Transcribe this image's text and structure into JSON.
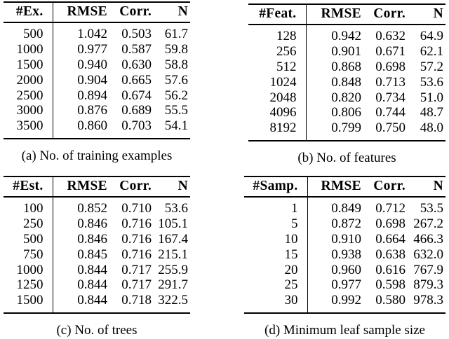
{
  "figure": {
    "background": "#ffffff",
    "text_color": "#000000",
    "rule_color": "#000000",
    "tables": [
      {
        "id": "a",
        "caption": "(a) No. of training examples",
        "headers": {
          "param": "#Ex.",
          "rmse": "RMSE",
          "corr": "Corr.",
          "n": "N"
        },
        "rows": [
          [
            "500",
            "1.042",
            "0.503",
            "61.7"
          ],
          [
            "1000",
            "0.977",
            "0.587",
            "59.8"
          ],
          [
            "1500",
            "0.940",
            "0.630",
            "58.8"
          ],
          [
            "2000",
            "0.904",
            "0.665",
            "57.6"
          ],
          [
            "2500",
            "0.894",
            "0.674",
            "56.2"
          ],
          [
            "3000",
            "0.876",
            "0.689",
            "55.5"
          ],
          [
            "3500",
            "0.860",
            "0.703",
            "54.1"
          ]
        ]
      },
      {
        "id": "b",
        "caption": "(b) No. of features",
        "headers": {
          "param": "#Feat.",
          "rmse": "RMSE",
          "corr": "Corr.",
          "n": "N"
        },
        "rows": [
          [
            "128",
            "0.942",
            "0.632",
            "64.9"
          ],
          [
            "256",
            "0.901",
            "0.671",
            "62.1"
          ],
          [
            "512",
            "0.868",
            "0.698",
            "57.2"
          ],
          [
            "1024",
            "0.848",
            "0.713",
            "53.6"
          ],
          [
            "2048",
            "0.820",
            "0.734",
            "51.0"
          ],
          [
            "4096",
            "0.806",
            "0.744",
            "48.7"
          ],
          [
            "8192",
            "0.799",
            "0.750",
            "48.0"
          ]
        ]
      },
      {
        "id": "c",
        "caption": "(c) No. of trees",
        "headers": {
          "param": "#Est.",
          "rmse": "RMSE",
          "corr": "Corr.",
          "n": "N"
        },
        "rows": [
          [
            "100",
            "0.852",
            "0.710",
            "53.6"
          ],
          [
            "250",
            "0.846",
            "0.716",
            "105.1"
          ],
          [
            "500",
            "0.846",
            "0.716",
            "167.4"
          ],
          [
            "750",
            "0.845",
            "0.716",
            "215.1"
          ],
          [
            "1000",
            "0.844",
            "0.717",
            "255.9"
          ],
          [
            "1250",
            "0.844",
            "0.717",
            "291.7"
          ],
          [
            "1500",
            "0.844",
            "0.718",
            "322.5"
          ]
        ]
      },
      {
        "id": "d",
        "caption": "(d) Minimum leaf sample size",
        "headers": {
          "param": "#Samp.",
          "rmse": "RMSE",
          "corr": "Corr.",
          "n": "N"
        },
        "rows": [
          [
            "1",
            "0.849",
            "0.712",
            "53.5"
          ],
          [
            "5",
            "0.872",
            "0.698",
            "267.2"
          ],
          [
            "10",
            "0.910",
            "0.664",
            "466.3"
          ],
          [
            "15",
            "0.938",
            "0.638",
            "632.0"
          ],
          [
            "20",
            "0.960",
            "0.616",
            "767.9"
          ],
          [
            "25",
            "0.977",
            "0.598",
            "879.3"
          ],
          [
            "30",
            "0.992",
            "0.580",
            "978.3"
          ]
        ]
      }
    ]
  }
}
